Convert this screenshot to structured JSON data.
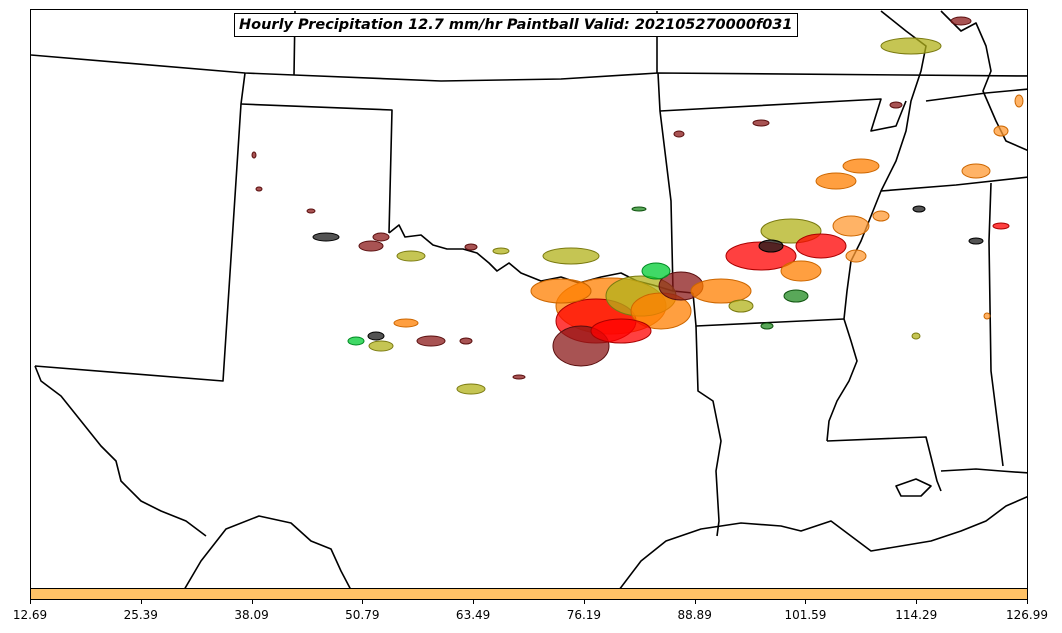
{
  "title": "Hourly Precipitation 12.7 mm/hr Paintball Valid: 202105270000f031",
  "colorbar": {
    "color": "#ffc266",
    "ticks": [
      "12.69",
      "25.39",
      "38.09",
      "50.79",
      "63.49",
      "76.19",
      "88.89",
      "101.59",
      "114.29",
      "126.99"
    ]
  },
  "member_colors": [
    "#ff0000",
    "#ff7f00",
    "#b2b21a",
    "#8b1a1a",
    "#228b22",
    "#00cc33",
    "#1a1a1a",
    "#ff9933"
  ],
  "map": {
    "region": "Southern Plains / Lower Mississippi Valley",
    "boundaries": "state outlines and Gulf coastline"
  }
}
